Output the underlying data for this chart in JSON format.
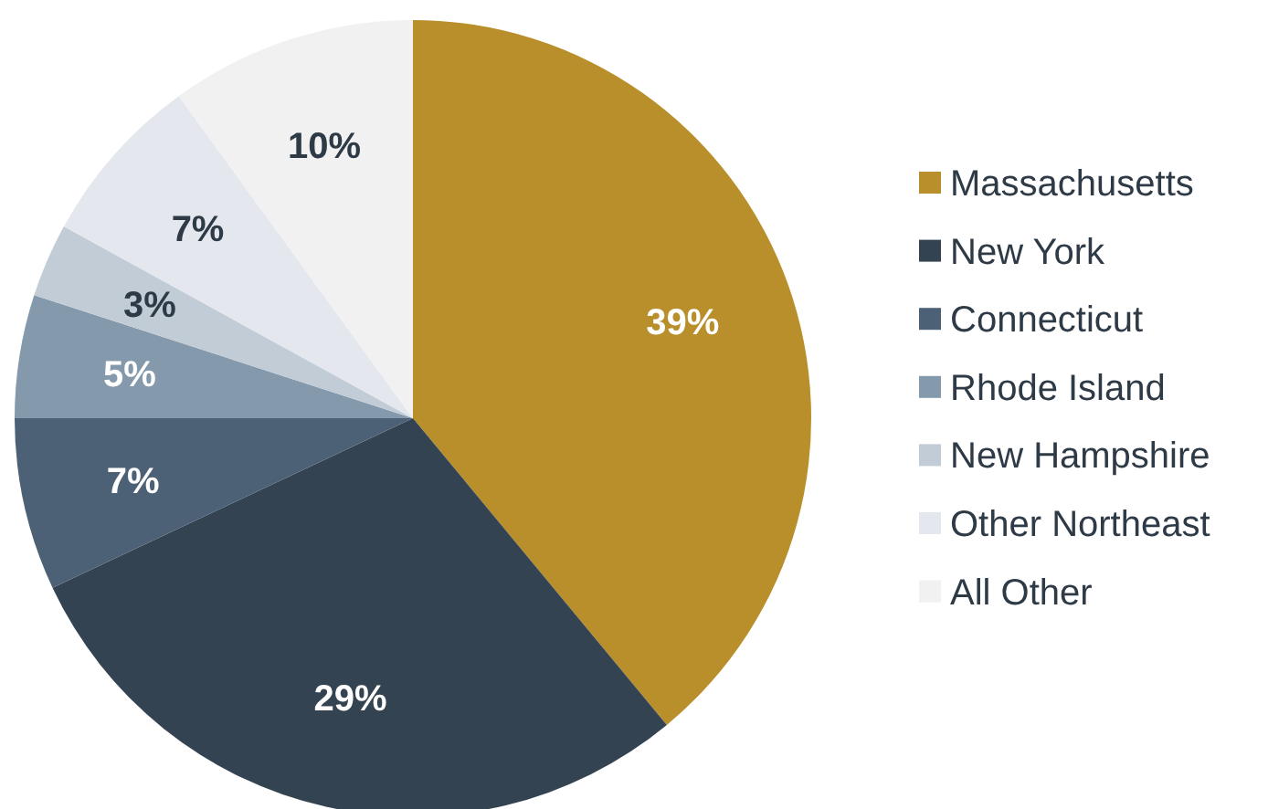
{
  "chart_data": {
    "type": "pie",
    "categories": [
      "Massachusetts",
      "New York",
      "Connecticut",
      "Rhode Island",
      "New Hampshire",
      "Other Northeast",
      "All Other"
    ],
    "values": [
      39,
      29,
      7,
      5,
      3,
      7,
      10
    ],
    "value_labels": [
      "39%",
      "29%",
      "7%",
      "5%",
      "3%",
      "7%",
      "10%"
    ],
    "colors": [
      "#b88f2a",
      "#344352",
      "#4d6176",
      "#8499ab",
      "#c2ccd6",
      "#e4e8ee",
      "#f1f1f2"
    ],
    "legend": "right"
  }
}
